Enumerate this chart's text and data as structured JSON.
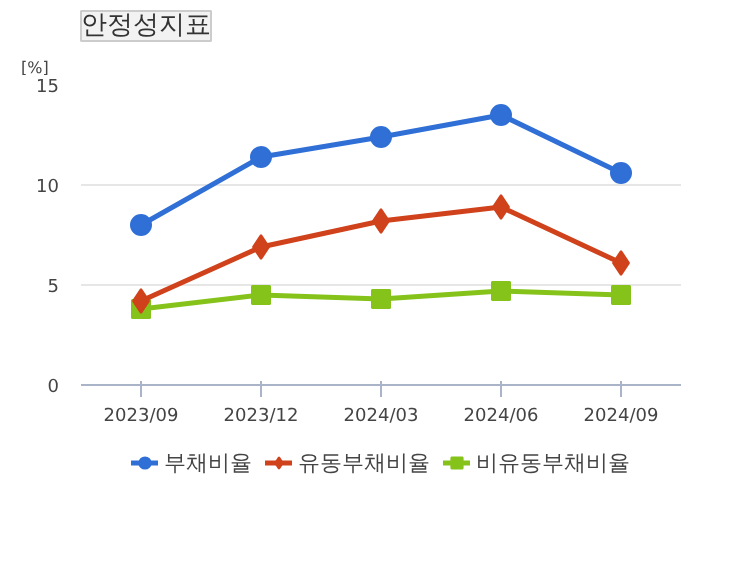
{
  "chart_data": {
    "type": "line",
    "title": "안정성지표",
    "ylabel": "[%]",
    "categories": [
      "2023/09",
      "2023/12",
      "2024/03",
      "2024/06",
      "2024/09"
    ],
    "series": [
      {
        "name": "부채비율",
        "color": "#2f6fd6",
        "marker": "circle",
        "values": [
          8.0,
          11.4,
          12.4,
          13.5,
          10.6
        ]
      },
      {
        "name": "유동부채비율",
        "color": "#d0421b",
        "marker": "diamond",
        "values": [
          4.2,
          6.9,
          8.2,
          8.9,
          6.1
        ]
      },
      {
        "name": "비유동부채비율",
        "color": "#86c31a",
        "marker": "square",
        "values": [
          3.8,
          4.5,
          4.3,
          4.7,
          4.5
        ]
      }
    ],
    "ylim": [
      0,
      15
    ],
    "yticks": [
      0,
      5,
      10,
      15
    ],
    "grid": "y",
    "legend": "bottom"
  }
}
